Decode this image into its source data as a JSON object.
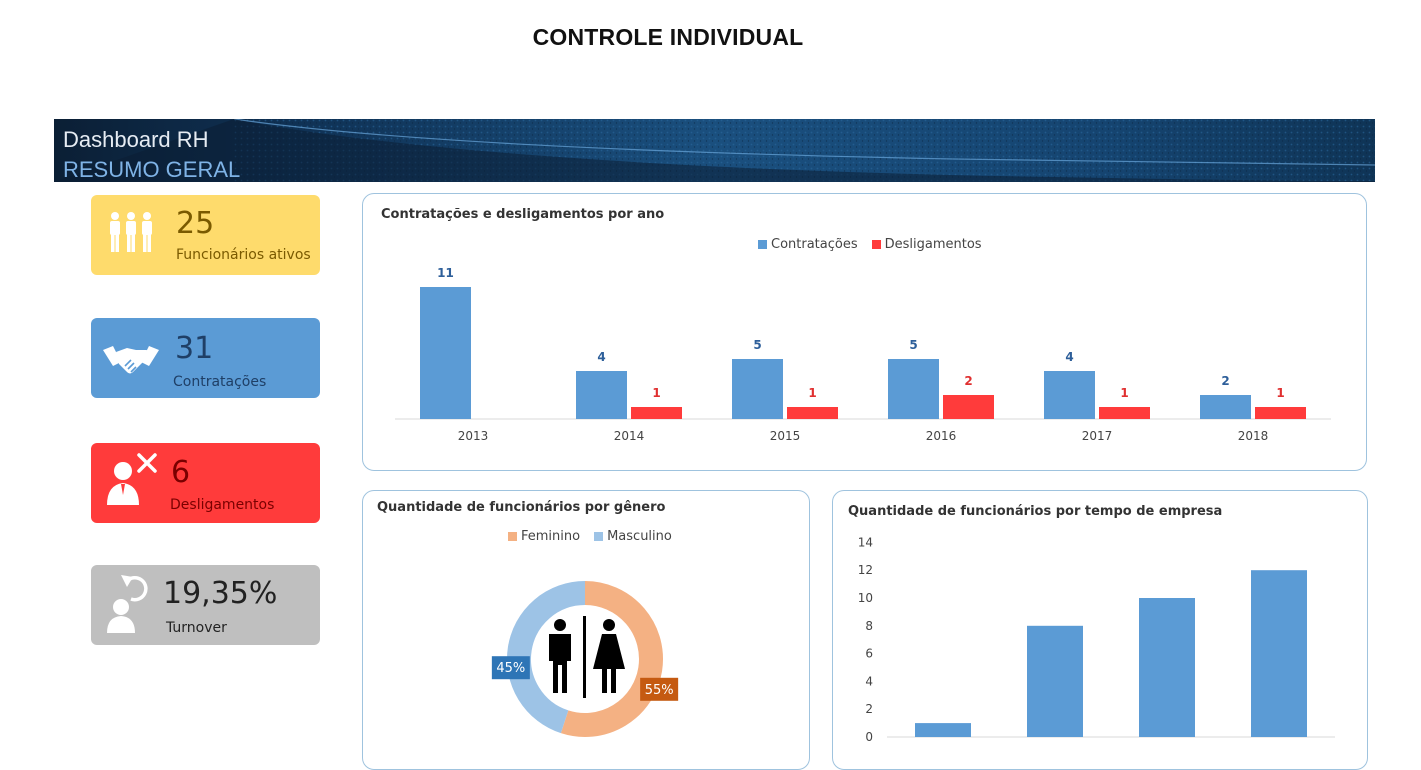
{
  "page": {
    "title": "CONTROLE INDIVIDUAL"
  },
  "banner": {
    "title": "Dashboard RH",
    "subtitle": "RESUMO GERAL"
  },
  "kpis": [
    {
      "value": "25",
      "label": "Funcionários ativos",
      "icon": "people-group-icon",
      "color": "#fedb6c"
    },
    {
      "value": "31",
      "label": "Contratações",
      "icon": "handshake-icon",
      "color": "#5b9bd5"
    },
    {
      "value": "6",
      "label": "Desligamentos",
      "icon": "person-removed-icon",
      "color": "#ff3b3b"
    },
    {
      "value": "19,35%",
      "label": "Turnover",
      "icon": "person-refresh-icon",
      "color": "#bfbfbf"
    }
  ],
  "chart_data": [
    {
      "type": "bar",
      "title": "Contratações e desligamentos por ano",
      "categories": [
        "2013",
        "2014",
        "2015",
        "2016",
        "2017",
        "2018"
      ],
      "series": [
        {
          "name": "Contratações",
          "values": [
            11,
            4,
            5,
            5,
            4,
            2
          ],
          "labels": [
            "11",
            "4",
            "5",
            "5",
            "4",
            "2"
          ],
          "color": "#5b9bd5"
        },
        {
          "name": "Desligamentos",
          "values": [
            0,
            1,
            1,
            2,
            1,
            1
          ],
          "labels": [
            "",
            "1",
            "1",
            "2",
            "1",
            "1"
          ],
          "color": "#ff3b3b"
        }
      ],
      "legend": "top-center",
      "data_labels": true
    },
    {
      "type": "pie",
      "variant": "donut",
      "title": "Quantidade de funcionários por gênero",
      "slices": [
        {
          "name": "Feminino",
          "value": 55,
          "label": "55%",
          "color": "#f4b183",
          "label_bg": "#c55a11"
        },
        {
          "name": "Masculino",
          "value": 45,
          "label": "45%",
          "color": "#9dc3e6",
          "label_bg": "#2e75b6"
        }
      ],
      "legend": "top-center",
      "center_icon": "restroom-icon"
    },
    {
      "type": "bar",
      "title": "Quantidade de funcionários por tempo de empresa",
      "categories": [
        "",
        "",
        "",
        ""
      ],
      "values": [
        1,
        8,
        10,
        12
      ],
      "ylim": [
        0,
        14
      ],
      "yticks": [
        "0",
        "2",
        "4",
        "6",
        "8",
        "10",
        "12",
        "14"
      ],
      "color": "#5b9bd5"
    }
  ]
}
